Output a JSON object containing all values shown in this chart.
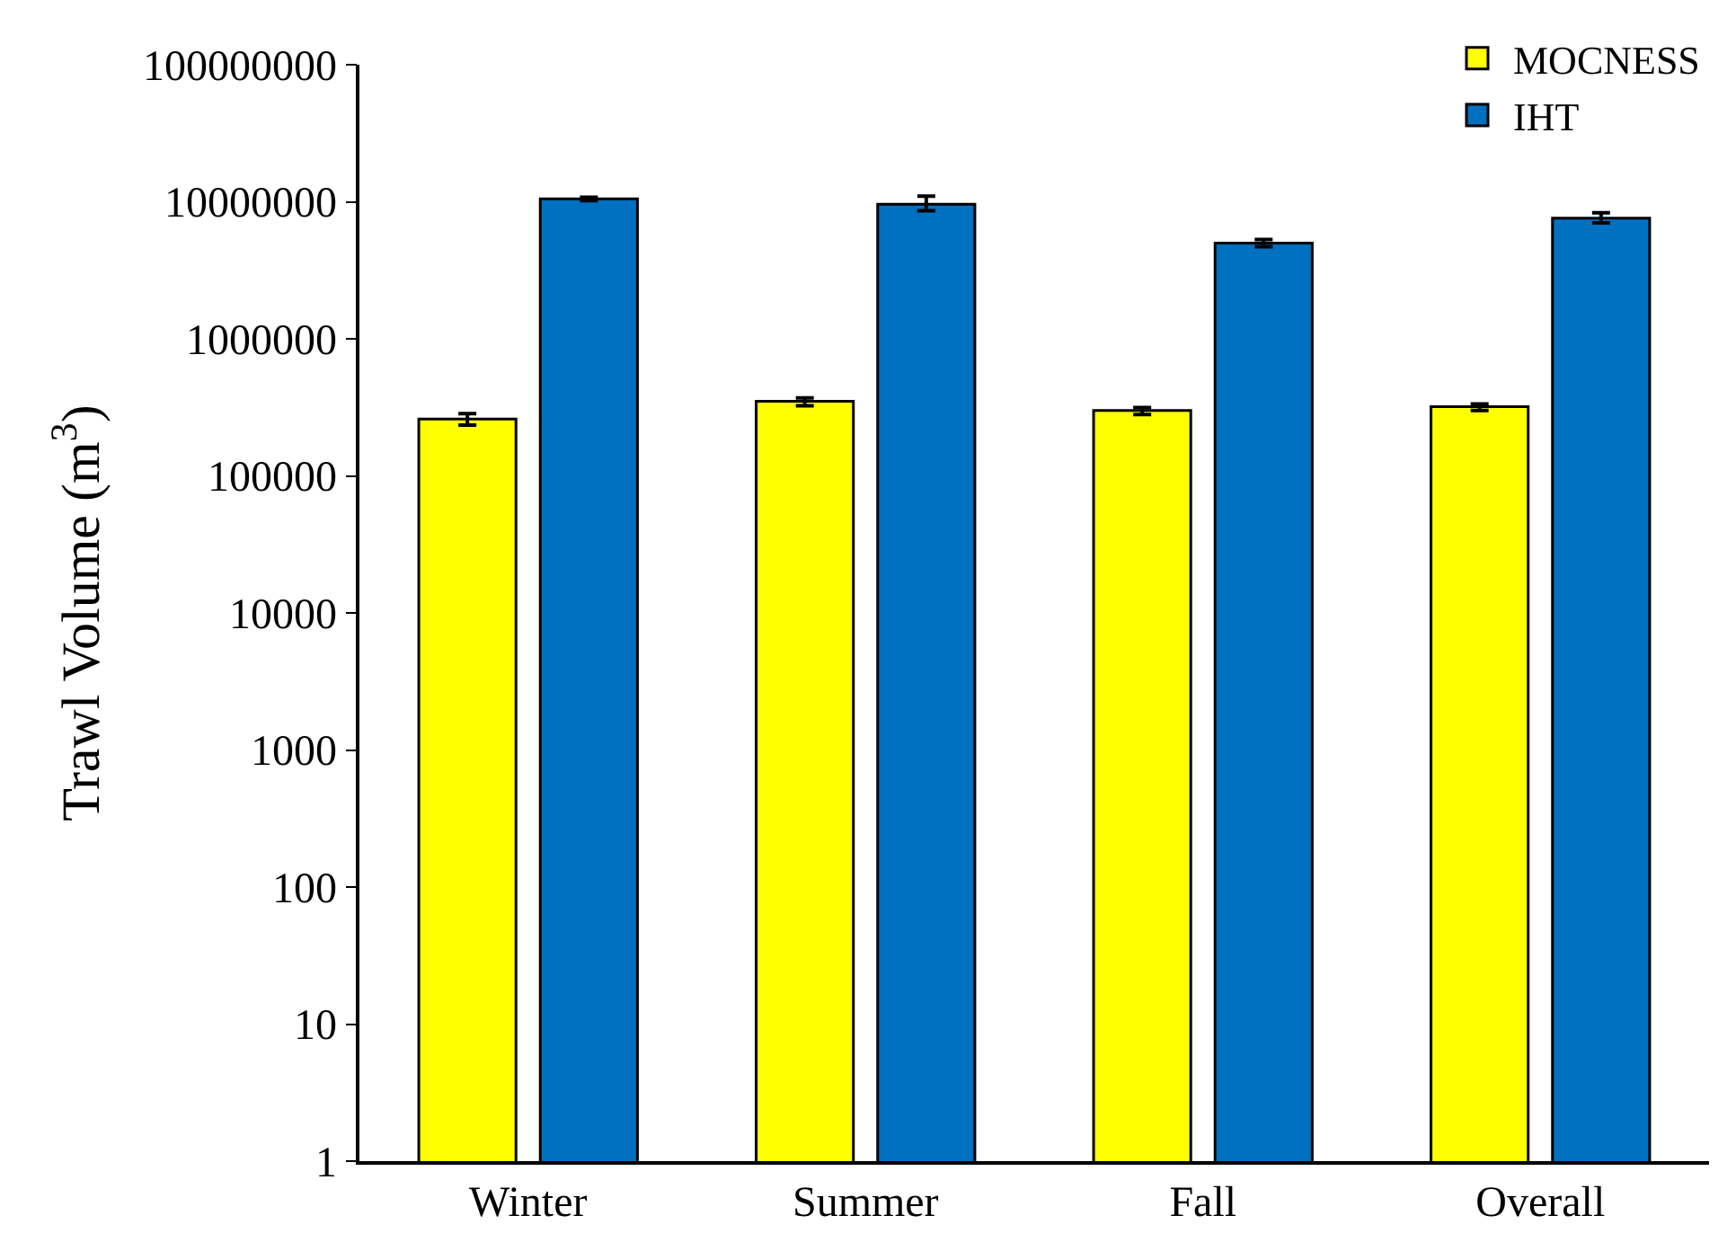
{
  "chart_data": {
    "type": "bar",
    "ylabel": "Trawl Volume (m$^{3}$)",
    "categories": [
      "Winter",
      "Summer",
      "Fall",
      "Overall"
    ],
    "series": [
      {
        "name": "MOCNESS",
        "color": "#ffff00",
        "values": [
          260000,
          350000,
          300000,
          320000
        ],
        "errors": [
          [
            235000,
            285000
          ],
          [
            325000,
            370000
          ],
          [
            280000,
            315000
          ],
          [
            300000,
            335000
          ]
        ]
      },
      {
        "name": "IHT",
        "color": "#0070c0",
        "values": [
          10500000,
          9600000,
          5000000,
          7600000
        ],
        "errors": [
          [
            10200000,
            10800000
          ],
          [
            8600000,
            11000000
          ],
          [
            4700000,
            5300000
          ],
          [
            7000000,
            8300000
          ]
        ]
      }
    ],
    "log": true,
    "ylim": [
      1,
      100000000
    ],
    "yticks": [
      1,
      10,
      100,
      1000,
      10000,
      100000,
      1000000,
      10000000,
      100000000
    ],
    "grid": false,
    "legend": "top right"
  }
}
